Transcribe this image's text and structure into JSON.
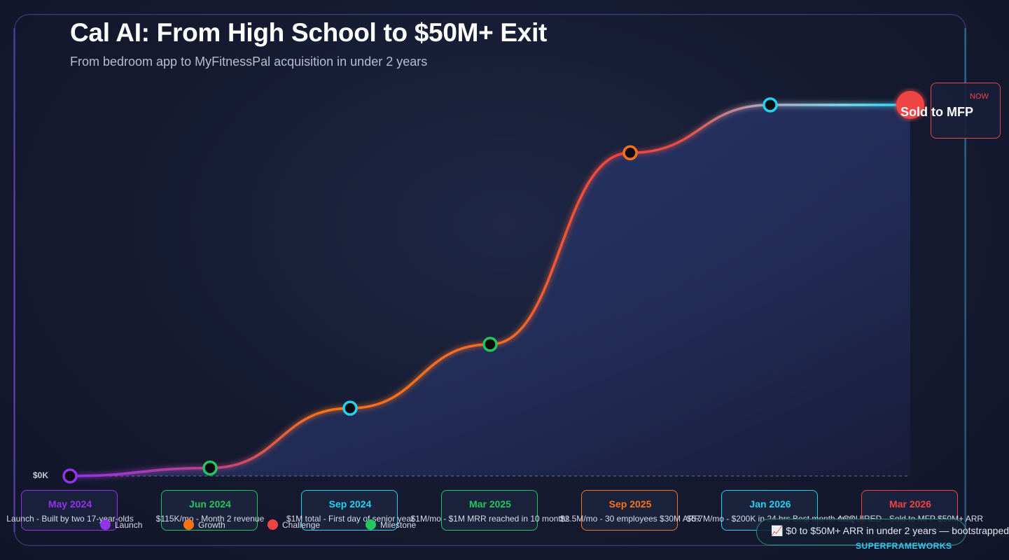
{
  "title": "Cal AI: From High School to $50M+ Exit",
  "subtitle": "From bedroom app to MyFitnessPal acquisition in under 2 years",
  "colors": {
    "launch": "#9333ea",
    "growth": "#f97316",
    "challenge": "#ef4444",
    "milestone": "#22c55e",
    "cyan": "#22d3ee"
  },
  "chart_data": {
    "type": "line",
    "title": "Cal AI: From High School to $50M+ Exit",
    "x_label": "",
    "y_label": "",
    "y_range": [
      0,
      100
    ],
    "y_tick_label": "$0K",
    "points": [
      {
        "date": "May 2024",
        "value": 0,
        "category": "launch",
        "description": "Launch - Built by two 17-year-olds"
      },
      {
        "date": "Jun 2024",
        "value": 2,
        "category": "milestone",
        "description": "$115K/mo - Month 2 revenue"
      },
      {
        "date": "Sep 2024",
        "value": 17,
        "category": "cyan",
        "description": "$1M total - First day of senior year"
      },
      {
        "date": "Mar 2025",
        "value": 33,
        "category": "milestone",
        "description": "$1M/mo - $1M MRR reached in 10 months"
      },
      {
        "date": "Sep 2025",
        "value": 81,
        "category": "growth",
        "description": "$2.5M/mo - 30 employees $30M ARR"
      },
      {
        "date": "Jan 2026",
        "value": 93,
        "category": "cyan",
        "description": "$5.7M/mo - $200K in 24 hrs Best month ever"
      },
      {
        "date": "Mar 2026",
        "value": 93,
        "category": "challenge",
        "description": "ACQUIRED - Sold to MFP $50M+ ARR"
      }
    ]
  },
  "date_cards": [
    {
      "label": "May 2024",
      "color": "#9333ea"
    },
    {
      "label": "Jun 2024",
      "color": "#22c55e"
    },
    {
      "label": "Sep 2024",
      "color": "#22d3ee"
    },
    {
      "label": "Mar 2025",
      "color": "#22c55e"
    },
    {
      "label": "Sep 2025",
      "color": "#f97316"
    },
    {
      "label": "Jan 2026",
      "color": "#22d3ee"
    },
    {
      "label": "Mar 2026",
      "color": "#ef4444"
    }
  ],
  "legend": [
    {
      "label": "Launch",
      "color": "#9333ea"
    },
    {
      "label": "Growth",
      "color": "#f97316"
    },
    {
      "label": "Challenge",
      "color": "#ef4444"
    },
    {
      "label": "Milestone",
      "color": "#22c55e"
    }
  ],
  "now_card": {
    "tag": "NOW",
    "text": "Sold to MFP"
  },
  "pill_text": "📈 $0 to $50M+ ARR in under 2 years — bootstrapped",
  "brand": "SUPERFRAMEWORKS"
}
